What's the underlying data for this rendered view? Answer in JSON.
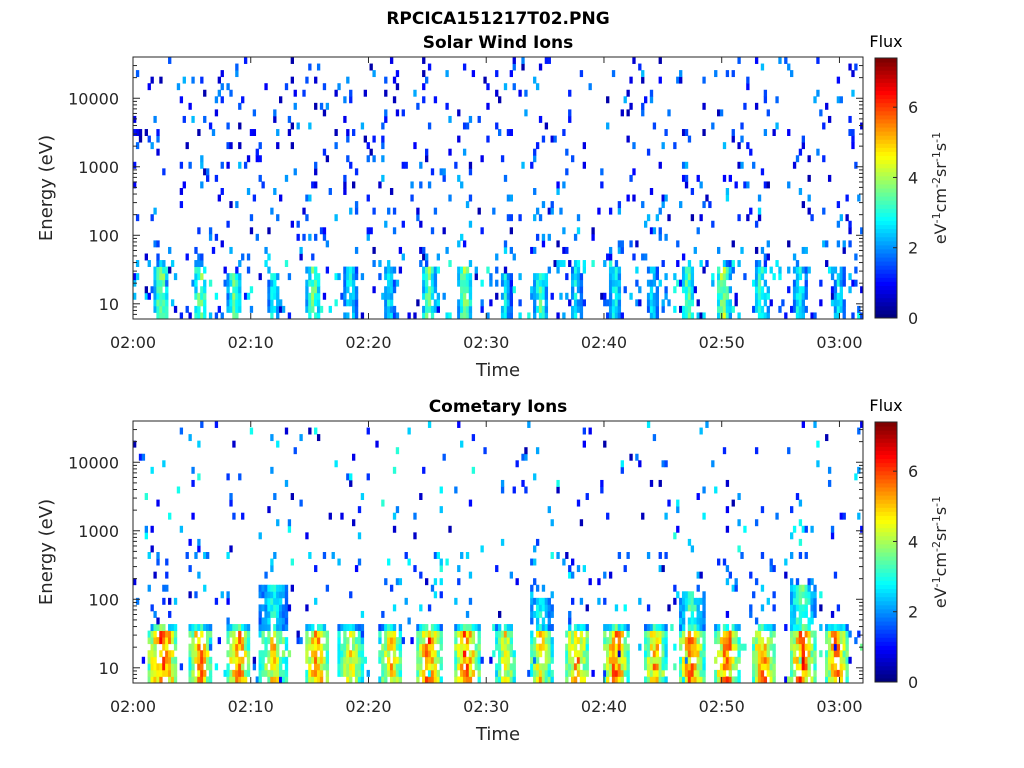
{
  "figure": {
    "title": "RPCICA151217T02.PNG"
  },
  "chart_data": [
    {
      "type": "heatmap",
      "title": "Solar Wind Ions",
      "xlabel": "Time",
      "ylabel": "Energy (eV)",
      "x_ticks": [
        "02:00",
        "02:10",
        "02:20",
        "02:30",
        "02:40",
        "02:50",
        "03:00"
      ],
      "x_range": [
        "02:00",
        "03:02"
      ],
      "y_scale": "log",
      "y_ticks": [
        10,
        100,
        1000,
        10000
      ],
      "y_tick_labels": [
        "10",
        "100",
        "1000",
        "10000"
      ],
      "y_range": [
        6,
        40000
      ],
      "colorbar": {
        "label": "Flux",
        "units": "eV-1cm-2sr-1s-1",
        "unit_parts": {
          "base1": "eV",
          "sup1": "-1",
          "base2": "cm",
          "sup2": "-2",
          "base3": "sr",
          "sup3": "-1",
          "base4": "s",
          "sup4": "-1"
        },
        "range": [
          0,
          7.4
        ],
        "ticks": [
          0,
          2,
          4,
          6
        ],
        "tick_labels": [
          "0",
          "2",
          "4",
          "6"
        ],
        "colormap": "jet"
      },
      "bursts": [
        {
          "t": 2.3,
          "w": 0.6,
          "top": 45,
          "v": 4.3
        },
        {
          "t": 5.6,
          "w": 0.6,
          "top": 40,
          "v": 4.2
        },
        {
          "t": 8.5,
          "w": 0.6,
          "top": 30,
          "v": 3.8
        },
        {
          "t": 11.8,
          "w": 0.5,
          "top": 35,
          "v": 3.2
        },
        {
          "t": 15.2,
          "w": 0.6,
          "top": 35,
          "v": 4.0
        },
        {
          "t": 18.3,
          "w": 0.6,
          "top": 32,
          "v": 3.0
        },
        {
          "t": 21.6,
          "w": 0.5,
          "top": 32,
          "v": 3.0
        },
        {
          "t": 25.0,
          "w": 0.6,
          "top": 35,
          "v": 4.1
        },
        {
          "t": 28.1,
          "w": 0.6,
          "top": 38,
          "v": 4.2
        },
        {
          "t": 31.5,
          "w": 0.5,
          "top": 30,
          "v": 3.0
        },
        {
          "t": 34.5,
          "w": 0.6,
          "top": 30,
          "v": 3.6
        },
        {
          "t": 37.5,
          "w": 0.5,
          "top": 35,
          "v": 3.0
        },
        {
          "t": 40.8,
          "w": 0.6,
          "top": 33,
          "v": 3.2
        },
        {
          "t": 44.0,
          "w": 0.5,
          "top": 32,
          "v": 2.8
        },
        {
          "t": 47.0,
          "w": 0.6,
          "top": 35,
          "v": 3.8
        },
        {
          "t": 50.0,
          "w": 0.6,
          "top": 40,
          "v": 4.5
        },
        {
          "t": 53.2,
          "w": 0.6,
          "top": 40,
          "v": 3.6
        },
        {
          "t": 56.5,
          "w": 0.6,
          "top": 38,
          "v": 3.2
        },
        {
          "t": 59.8,
          "w": 0.5,
          "top": 35,
          "v": 3.0
        }
      ],
      "scatter_density": 0.07,
      "scatter_max_value": 2.0,
      "seed": 11
    },
    {
      "type": "heatmap",
      "title": "Cometary Ions",
      "xlabel": "Time",
      "ylabel": "Energy (eV)",
      "x_ticks": [
        "02:00",
        "02:10",
        "02:20",
        "02:30",
        "02:40",
        "02:50",
        "03:00"
      ],
      "x_range": [
        "02:00",
        "03:02"
      ],
      "y_scale": "log",
      "y_ticks": [
        10,
        100,
        1000,
        10000
      ],
      "y_tick_labels": [
        "10",
        "100",
        "1000",
        "10000"
      ],
      "y_range": [
        6,
        40000
      ],
      "colorbar": {
        "label": "Flux",
        "units": "eV-1cm-2sr-1s-1",
        "unit_parts": {
          "base1": "eV",
          "sup1": "-1",
          "base2": "cm",
          "sup2": "-2",
          "base3": "sr",
          "sup3": "-1",
          "base4": "s",
          "sup4": "-1"
        },
        "range": [
          0,
          7.4
        ],
        "ticks": [
          0,
          2,
          4,
          6
        ],
        "tick_labels": [
          "0",
          "2",
          "4",
          "6"
        ],
        "colormap": "jet"
      },
      "bursts": [
        {
          "t": 2.4,
          "w": 1.3,
          "top": 45,
          "v": 6.5
        },
        {
          "t": 5.6,
          "w": 1.0,
          "top": 40,
          "v": 6.0
        },
        {
          "t": 8.8,
          "w": 1.0,
          "top": 40,
          "v": 6.2
        },
        {
          "t": 11.8,
          "w": 1.2,
          "top": 150,
          "v": 5.2
        },
        {
          "t": 15.5,
          "w": 1.1,
          "top": 40,
          "v": 6.0
        },
        {
          "t": 18.4,
          "w": 1.1,
          "top": 40,
          "v": 5.0
        },
        {
          "t": 21.8,
          "w": 1.0,
          "top": 40,
          "v": 5.5
        },
        {
          "t": 25.0,
          "w": 1.1,
          "top": 40,
          "v": 6.1
        },
        {
          "t": 28.2,
          "w": 1.1,
          "top": 45,
          "v": 6.3
        },
        {
          "t": 31.5,
          "w": 0.9,
          "top": 40,
          "v": 5.0
        },
        {
          "t": 34.5,
          "w": 1.0,
          "top": 110,
          "v": 5.2
        },
        {
          "t": 37.6,
          "w": 1.0,
          "top": 45,
          "v": 5.8
        },
        {
          "t": 40.9,
          "w": 1.1,
          "top": 45,
          "v": 6.2
        },
        {
          "t": 44.2,
          "w": 1.0,
          "top": 40,
          "v": 5.6
        },
        {
          "t": 47.3,
          "w": 1.1,
          "top": 130,
          "v": 6.1
        },
        {
          "t": 50.3,
          "w": 1.1,
          "top": 45,
          "v": 6.2
        },
        {
          "t": 53.4,
          "w": 1.0,
          "top": 45,
          "v": 6.0
        },
        {
          "t": 56.7,
          "w": 1.1,
          "top": 180,
          "v": 6.4
        },
        {
          "t": 59.6,
          "w": 1.0,
          "top": 40,
          "v": 6.0
        }
      ],
      "scatter_density": 0.035,
      "scatter_max_value": 2.8,
      "seed": 29
    }
  ]
}
